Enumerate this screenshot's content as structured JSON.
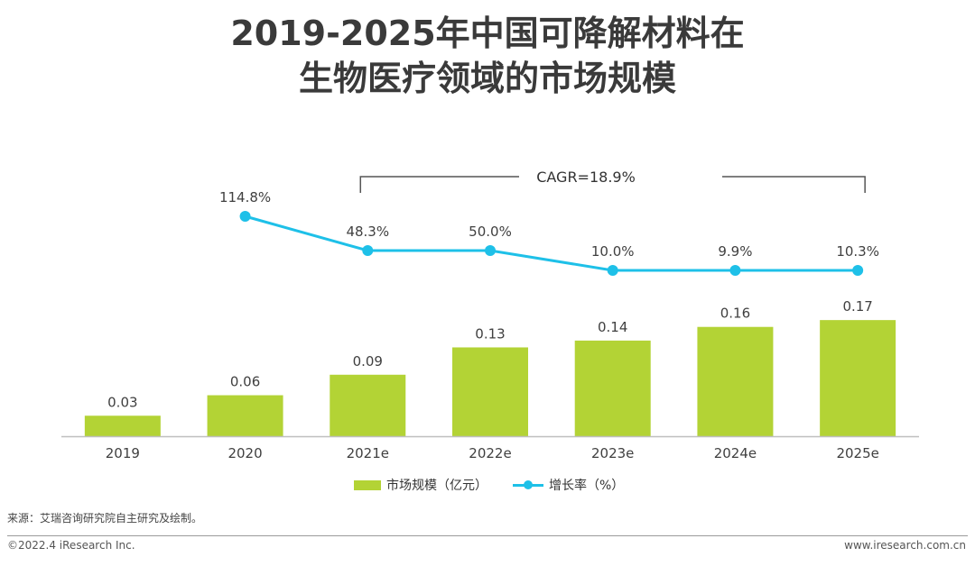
{
  "title_line1": "2019-2025年中国可降解材料在",
  "title_line2": "生物医疗领域的市场规模",
  "colors": {
    "bar": "#b3d335",
    "line": "#1ec0e8",
    "axis": "#bfbfbf",
    "bracket": "#555555"
  },
  "chart_data": {
    "type": "bar+line",
    "categories": [
      "2019",
      "2020",
      "2021e",
      "2022e",
      "2023e",
      "2024e",
      "2025e"
    ],
    "series": [
      {
        "name": "市场规模（亿元）",
        "type": "bar",
        "values": [
          0.03,
          0.06,
          0.09,
          0.13,
          0.14,
          0.16,
          0.17
        ],
        "labels": [
          "0.03",
          "0.06",
          "0.09",
          "0.13",
          "0.14",
          "0.16",
          "0.17"
        ]
      },
      {
        "name": "增长率（%）",
        "type": "line",
        "values": [
          null,
          114.8,
          48.3,
          50.0,
          10.0,
          9.9,
          10.3
        ],
        "labels": [
          "",
          "114.8%",
          "48.3%",
          "50.0%",
          "10.0%",
          "9.9%",
          "10.3%"
        ]
      }
    ],
    "annotation": {
      "text": "CAGR=18.9%",
      "from_category": "2021e",
      "to_category": "2025e"
    },
    "bar_axis_range": [
      0,
      0.2
    ],
    "line_axis_range": [
      0,
      150
    ]
  },
  "legend": {
    "bar_label": "市场规模（亿元）",
    "line_label": "增长率（%）"
  },
  "source": "来源：艾瑞咨询研究院自主研究及绘制。",
  "footer_left": "©2022.4 iResearch Inc.",
  "footer_right": "www.iresearch.com.cn"
}
